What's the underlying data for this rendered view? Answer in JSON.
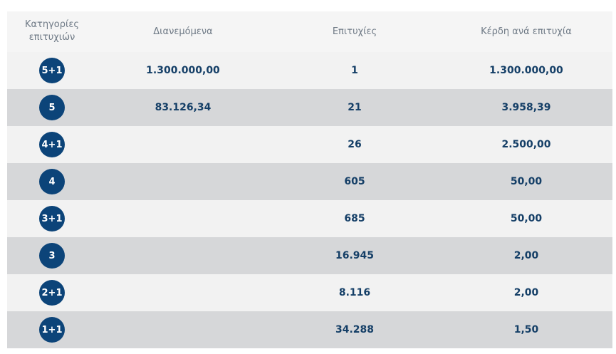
{
  "header": {
    "category_line1": "Κατηγορίες",
    "category_line2": "επιτυχιών",
    "distributed": "Διανεμόμενα",
    "winners": "Επιτυχίες",
    "prize_per_winner": "Κέρδη ανά επιτυχία"
  },
  "rows": [
    {
      "category": "5+1",
      "distributed": "1.300.000,00",
      "winners": "1",
      "prize": "1.300.000,00"
    },
    {
      "category": "5",
      "distributed": "83.126,34",
      "winners": "21",
      "prize": "3.958,39"
    },
    {
      "category": "4+1",
      "distributed": "",
      "winners": "26",
      "prize": "2.500,00"
    },
    {
      "category": "4",
      "distributed": "",
      "winners": "605",
      "prize": "50,00"
    },
    {
      "category": "3+1",
      "distributed": "",
      "winners": "685",
      "prize": "50,00"
    },
    {
      "category": "3",
      "distributed": "",
      "winners": "16.945",
      "prize": "2,00"
    },
    {
      "category": "2+1",
      "distributed": "",
      "winners": "8.116",
      "prize": "2,00"
    },
    {
      "category": "1+1",
      "distributed": "",
      "winners": "34.288",
      "prize": "1,50"
    }
  ],
  "colors": {
    "badge": "#0c4479",
    "value_text": "#153f67",
    "header_text": "#6f7a86",
    "row_light": "#f2f2f2",
    "row_dark": "#d6d7d9"
  }
}
